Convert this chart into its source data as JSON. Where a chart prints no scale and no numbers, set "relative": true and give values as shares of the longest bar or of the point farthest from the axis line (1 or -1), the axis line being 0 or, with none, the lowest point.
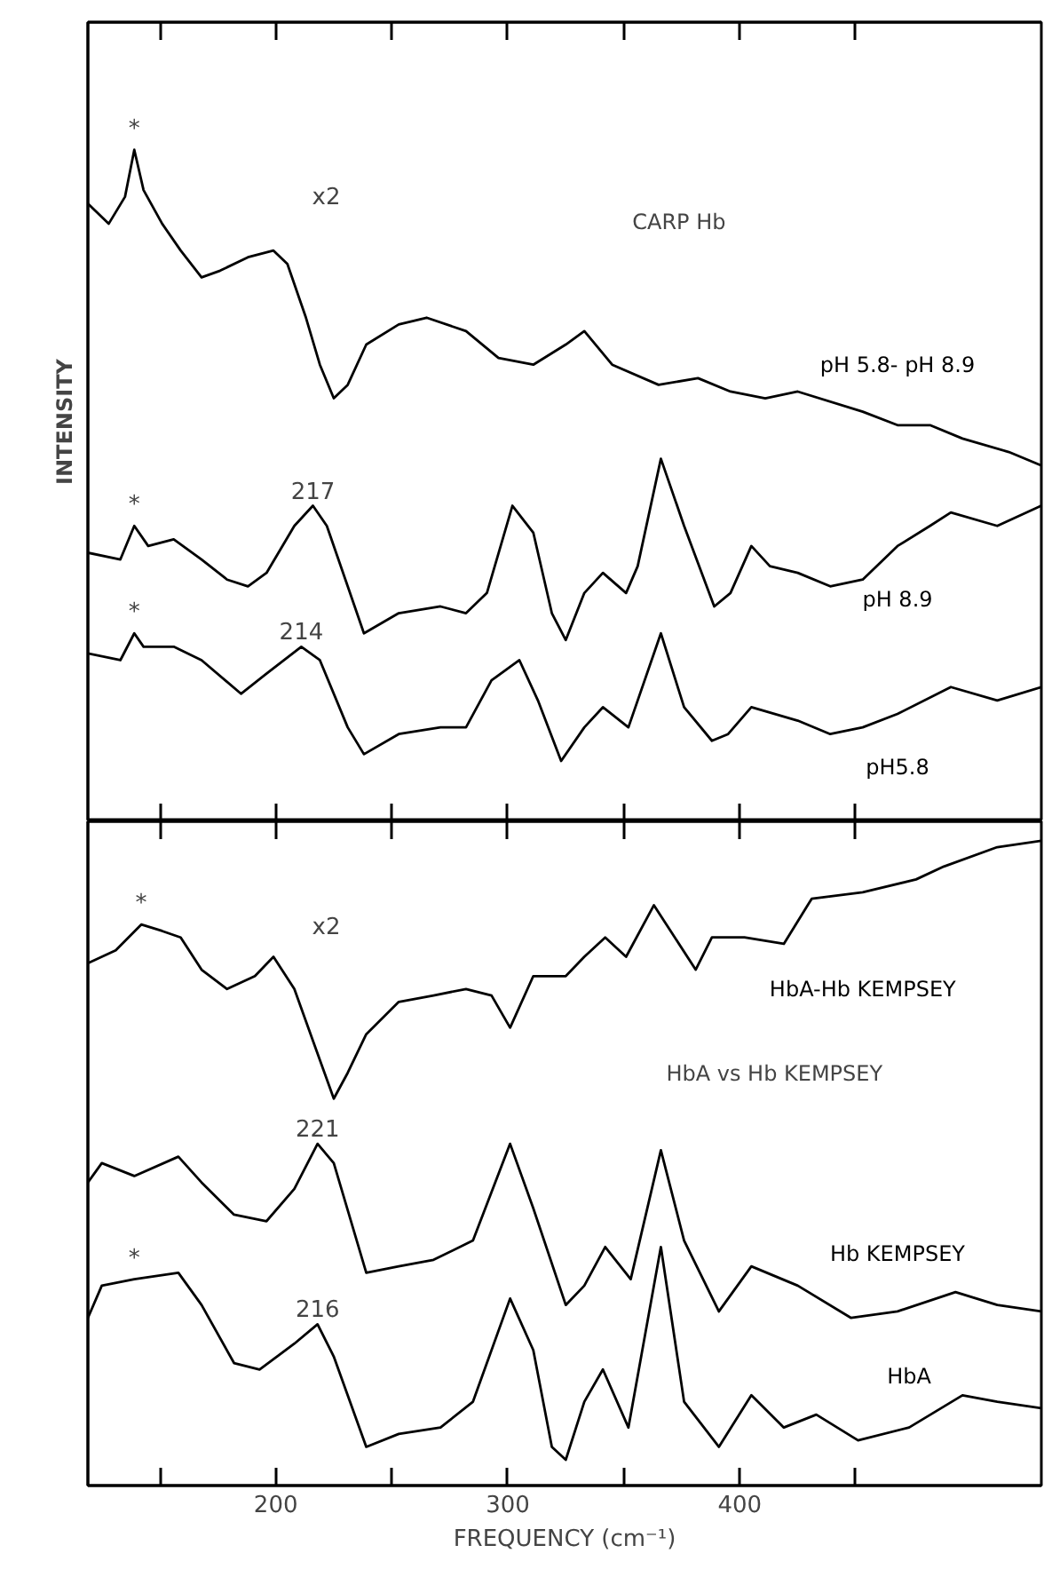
{
  "chart_data": [
    {
      "type": "line",
      "title": "CARP Hb",
      "ylabel": "INTENSITY",
      "relative": true,
      "xlim": [
        119,
        530
      ],
      "xticks": [
        {
          "value": 150,
          "label": null
        },
        {
          "value": 200,
          "label": null
        },
        {
          "value": 250,
          "label": null
        },
        {
          "value": 300,
          "label": null
        },
        {
          "value": 350,
          "label": null
        },
        {
          "value": 400,
          "label": null
        },
        {
          "value": 450,
          "label": null
        }
      ],
      "tick_labels": false,
      "grid": false,
      "legend": false,
      "annotations": [
        {
          "text": "*",
          "x": 139,
          "y": 1.0
        },
        "x2",
        {
          "text": "*",
          "x": 139,
          "y": 0.44
        },
        {
          "text": "217",
          "x": 216,
          "y": 0.47
        },
        {
          "text": "*",
          "x": 139,
          "y": 0.28
        },
        {
          "text": "214",
          "x": 211,
          "y": 0.26
        }
      ],
      "series": [
        {
          "name": "pH 5.8- pH 8.9",
          "color": "#000000",
          "x": [
            119,
            128,
            135,
            139,
            143,
            151,
            159,
            168,
            176,
            188,
            199,
            205,
            213,
            219,
            225,
            231,
            239,
            253,
            265,
            282,
            296,
            311,
            325,
            333,
            345,
            365,
            382,
            396,
            411,
            425,
            453,
            468,
            482,
            496,
            516,
            530
          ],
          "values": [
            0.92,
            0.89,
            0.93,
            1.0,
            0.94,
            0.89,
            0.85,
            0.81,
            0.82,
            0.84,
            0.85,
            0.83,
            0.75,
            0.68,
            0.63,
            0.65,
            0.71,
            0.74,
            0.75,
            0.73,
            0.69,
            0.68,
            0.71,
            0.73,
            0.68,
            0.65,
            0.66,
            0.64,
            0.63,
            0.64,
            0.61,
            0.59,
            0.59,
            0.57,
            0.55,
            0.53
          ]
        },
        {
          "name": "pH 8.9",
          "color": "#000000",
          "x": [
            119,
            133,
            139,
            145,
            156,
            168,
            179,
            188,
            196,
            208,
            216,
            222,
            231,
            238,
            253,
            271,
            282,
            291,
            302,
            311,
            319,
            325,
            333,
            341,
            351,
            356,
            366,
            376,
            389,
            396,
            405,
            413,
            425,
            439,
            453,
            468,
            482,
            491,
            511,
            530
          ],
          "values": [
            0.4,
            0.39,
            0.44,
            0.41,
            0.42,
            0.39,
            0.36,
            0.35,
            0.37,
            0.44,
            0.47,
            0.44,
            0.35,
            0.28,
            0.31,
            0.32,
            0.31,
            0.34,
            0.47,
            0.43,
            0.31,
            0.27,
            0.34,
            0.37,
            0.34,
            0.38,
            0.54,
            0.44,
            0.32,
            0.34,
            0.41,
            0.38,
            0.37,
            0.35,
            0.36,
            0.41,
            0.44,
            0.46,
            0.44,
            0.47
          ]
        },
        {
          "name": "pH5.8",
          "color": "#000000",
          "x": [
            119,
            133,
            139,
            143,
            156,
            168,
            185,
            196,
            211,
            219,
            231,
            238,
            253,
            271,
            282,
            293,
            305,
            313,
            323,
            333,
            341,
            352,
            366,
            376,
            388,
            395,
            405,
            425,
            439,
            453,
            468,
            491,
            511,
            530
          ],
          "values": [
            0.25,
            0.24,
            0.28,
            0.26,
            0.26,
            0.24,
            0.19,
            0.22,
            0.26,
            0.24,
            0.14,
            0.1,
            0.13,
            0.14,
            0.14,
            0.21,
            0.24,
            0.18,
            0.09,
            0.14,
            0.17,
            0.14,
            0.28,
            0.17,
            0.12,
            0.13,
            0.17,
            0.15,
            0.13,
            0.14,
            0.16,
            0.2,
            0.18,
            0.2
          ]
        }
      ]
    },
    {
      "type": "line",
      "title": "HbA vs Hb KEMPSEY",
      "xlabel": "FREQUENCY (cm⁻¹)",
      "relative": true,
      "xlim": [
        119,
        530
      ],
      "xticks": [
        {
          "value": 150,
          "label": null
        },
        200,
        {
          "value": 250,
          "label": null
        },
        300,
        {
          "value": 350,
          "label": null
        },
        400,
        {
          "value": 450,
          "label": null
        }
      ],
      "tick_labels": "x",
      "grid": false,
      "legend": false,
      "annotations": [
        {
          "text": "*",
          "x": 142,
          "y": 0.87
        },
        "x2",
        {
          "text": "221",
          "x": 218,
          "y": 0.53
        },
        {
          "text": "*",
          "x": 139,
          "y": 0.32
        },
        {
          "text": "216",
          "x": 218,
          "y": 0.25
        }
      ],
      "series": [
        {
          "name": "HbA-Hb KEMPSEY",
          "color": "#000000",
          "x": [
            119,
            131,
            142,
            151,
            159,
            168,
            179,
            191,
            199,
            208,
            216,
            225,
            231,
            239,
            253,
            268,
            282,
            293,
            301,
            311,
            325,
            333,
            342,
            351,
            363,
            372,
            381,
            388,
            402,
            419,
            431,
            453,
            476,
            488,
            511,
            530
          ],
          "values": [
            0.81,
            0.83,
            0.87,
            0.86,
            0.85,
            0.8,
            0.77,
            0.79,
            0.82,
            0.77,
            0.69,
            0.6,
            0.64,
            0.7,
            0.75,
            0.76,
            0.77,
            0.76,
            0.71,
            0.79,
            0.79,
            0.82,
            0.85,
            0.82,
            0.9,
            0.85,
            0.8,
            0.85,
            0.85,
            0.84,
            0.91,
            0.92,
            0.94,
            0.96,
            0.99,
            1.0
          ]
        },
        {
          "name": "Hb KEMPSEY",
          "color": "#000000",
          "x": [
            119,
            125,
            139,
            158,
            168,
            182,
            196,
            208,
            218,
            225,
            239,
            253,
            268,
            285,
            301,
            311,
            325,
            333,
            342,
            353,
            366,
            376,
            391,
            405,
            425,
            448,
            468,
            493,
            511,
            530
          ],
          "values": [
            0.47,
            0.5,
            0.48,
            0.51,
            0.47,
            0.42,
            0.41,
            0.46,
            0.53,
            0.5,
            0.33,
            0.34,
            0.35,
            0.38,
            0.53,
            0.43,
            0.28,
            0.31,
            0.37,
            0.32,
            0.52,
            0.38,
            0.27,
            0.34,
            0.31,
            0.26,
            0.27,
            0.3,
            0.28,
            0.27
          ]
        },
        {
          "name": "HbA",
          "color": "#000000",
          "x": [
            119,
            125,
            139,
            158,
            168,
            182,
            193,
            208,
            218,
            225,
            239,
            253,
            271,
            285,
            301,
            311,
            319,
            325,
            333,
            341,
            352,
            366,
            376,
            391,
            405,
            419,
            433,
            451,
            473,
            496,
            511,
            530
          ],
          "values": [
            0.26,
            0.31,
            0.32,
            0.33,
            0.28,
            0.19,
            0.18,
            0.22,
            0.25,
            0.2,
            0.06,
            0.08,
            0.09,
            0.13,
            0.29,
            0.21,
            0.06,
            0.04,
            0.13,
            0.18,
            0.09,
            0.37,
            0.13,
            0.06,
            0.14,
            0.09,
            0.11,
            0.07,
            0.09,
            0.14,
            0.13,
            0.12
          ]
        }
      ]
    }
  ]
}
